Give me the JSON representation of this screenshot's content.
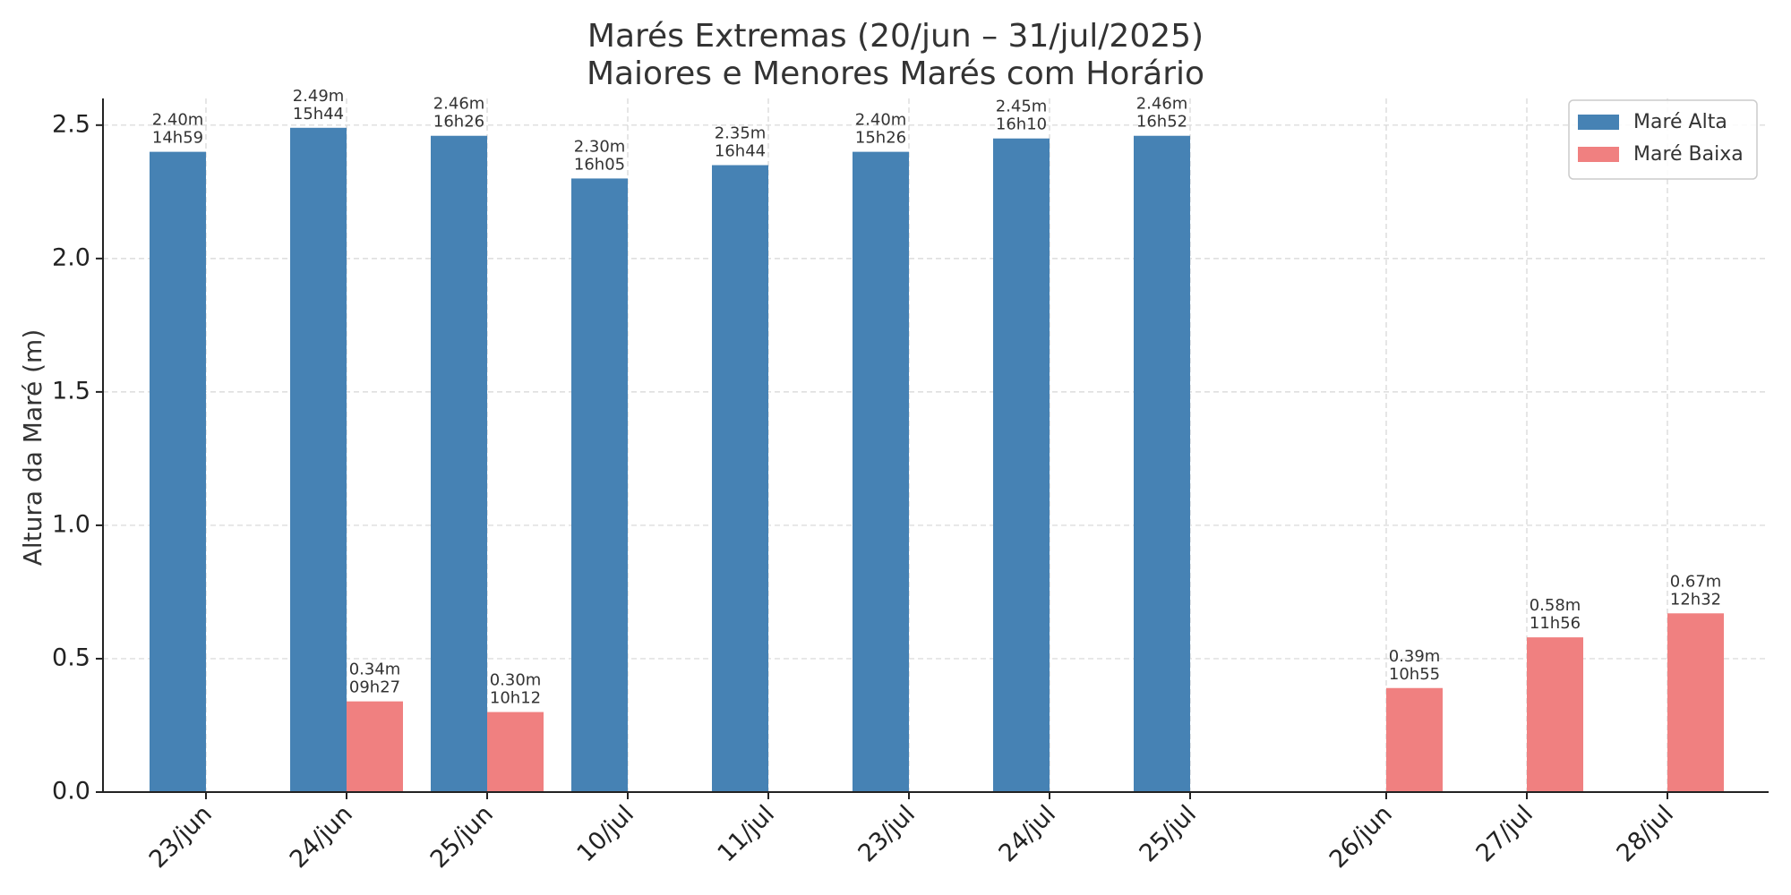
{
  "chart_data": {
    "type": "bar",
    "title": "Marés Extremas (20/jun – 31/jul/2025)",
    "subtitle": "Maiores e Menores Marés com Horário",
    "xlabel": "",
    "ylabel": "Altura da Maré (m)",
    "ylim": [
      0,
      2.6
    ],
    "yticks": [
      "0.0",
      "0.5",
      "1.0",
      "1.5",
      "2.0",
      "2.5"
    ],
    "grid": true,
    "legend_position": "top-right",
    "categories": [
      "23/jun",
      "24/jun",
      "25/jun",
      "10/jul",
      "11/jul",
      "23/jul",
      "24/jul",
      "25/jul",
      "26/jun",
      "27/jul",
      "28/jul"
    ],
    "series": [
      {
        "name": "Maré Alta",
        "color": "#4682b4",
        "values": [
          2.4,
          2.49,
          2.46,
          2.3,
          2.35,
          2.4,
          2.45,
          2.46,
          null,
          null,
          null
        ],
        "labels": [
          "2.40m",
          "2.49m",
          "2.46m",
          "2.30m",
          "2.35m",
          "2.40m",
          "2.45m",
          "2.46m",
          null,
          null,
          null
        ],
        "times": [
          "14h59",
          "15h44",
          "16h26",
          "16h05",
          "16h44",
          "15h26",
          "16h10",
          "16h52",
          null,
          null,
          null
        ]
      },
      {
        "name": "Maré Baixa",
        "color": "#f08080",
        "values": [
          null,
          0.34,
          0.3,
          null,
          null,
          null,
          null,
          null,
          0.39,
          0.58,
          0.67
        ],
        "labels": [
          null,
          "0.34m",
          "0.30m",
          null,
          null,
          null,
          null,
          null,
          "0.39m",
          "0.58m",
          "0.67m"
        ],
        "times": [
          null,
          "09h27",
          "10h12",
          null,
          null,
          null,
          null,
          null,
          "10h55",
          "11h56",
          "12h32"
        ]
      }
    ]
  }
}
